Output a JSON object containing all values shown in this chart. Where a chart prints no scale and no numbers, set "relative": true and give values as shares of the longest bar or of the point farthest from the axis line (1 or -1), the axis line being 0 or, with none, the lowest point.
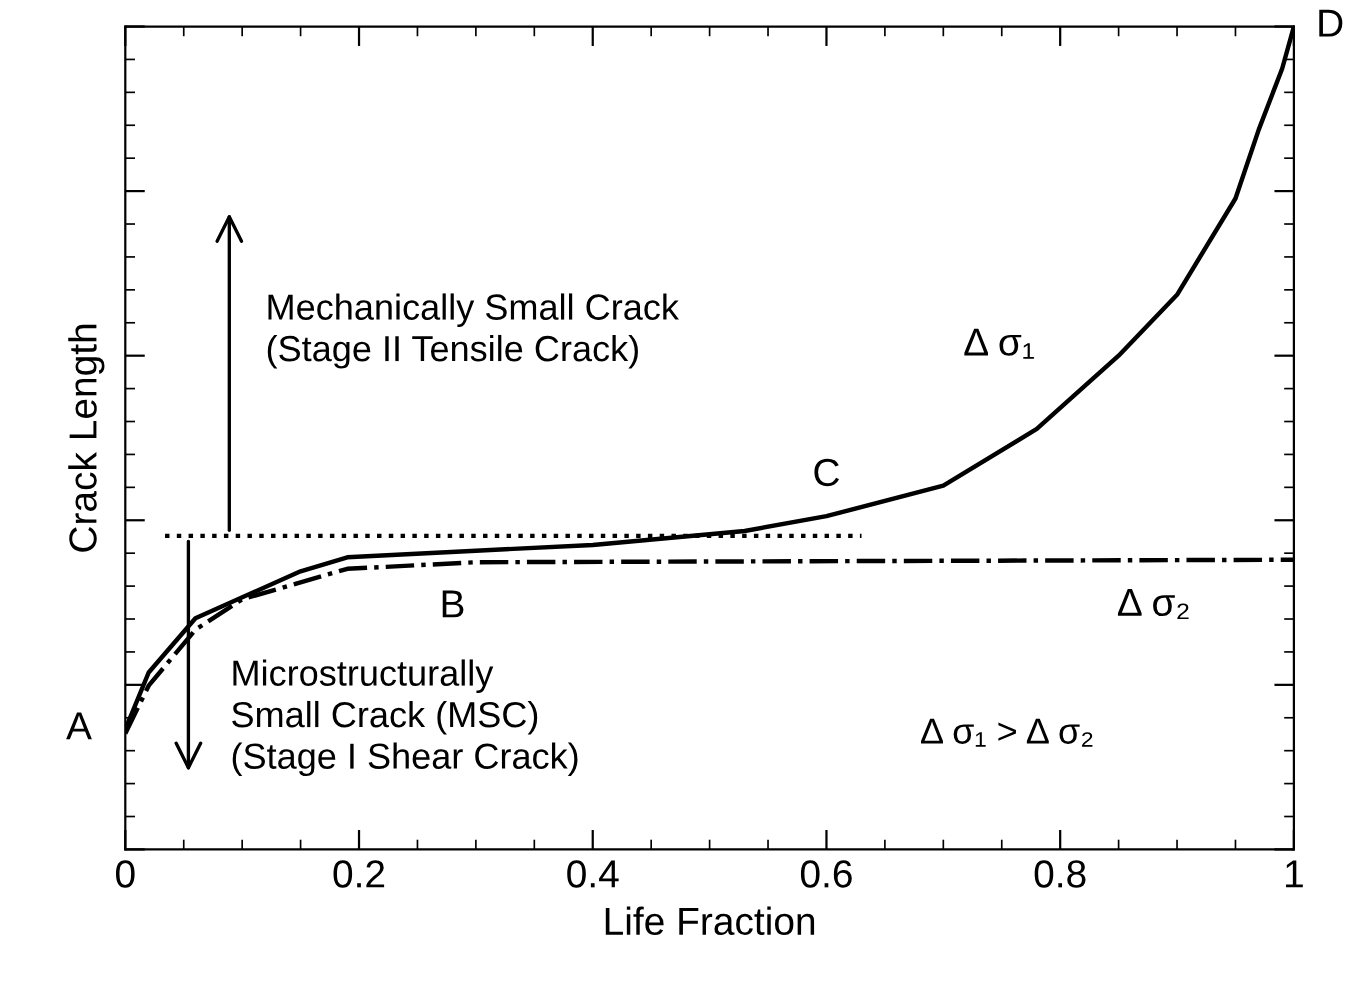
{
  "chart_data": {
    "type": "line",
    "xlabel": "Life Fraction",
    "ylabel": "Crack Length",
    "relative": true,
    "xlim": [
      0,
      1
    ],
    "xticks": [
      0,
      0.2,
      0.4,
      0.6,
      0.8,
      1
    ],
    "grid": false,
    "legend": false,
    "marker": "none",
    "series": [
      {
        "color": "#000000",
        "line_style": "solid",
        "x": [
          0,
          0.02,
          0.06,
          0.15,
          0.19,
          0.3,
          0.4,
          0.53,
          0.6,
          0.7,
          0.78,
          0.85,
          0.9,
          0.95,
          0.97,
          0.99,
          1
        ],
        "values": [
          0.146,
          0.215,
          0.281,
          0.338,
          0.355,
          0.363,
          0.37,
          0.387,
          0.405,
          0.442,
          0.511,
          0.6,
          0.674,
          0.791,
          0.875,
          0.949,
          1
        ]
      },
      {
        "color": "#000000",
        "line_style": "dashdot",
        "x": [
          0,
          0.02,
          0.06,
          0.1,
          0.19,
          0.3,
          1
        ],
        "values": [
          0.141,
          0.199,
          0.267,
          0.304,
          0.341,
          0.349,
          0.352
        ]
      },
      {
        "color": "#000000",
        "line_style": "dotted",
        "x": [
          0.034,
          0.63
        ],
        "values": [
          0.381,
          0.381
        ]
      }
    ],
    "annotations": [
      {
        "text": "A",
        "x": 0,
        "y": 0.146
      },
      {
        "text": "B",
        "x": 0.28,
        "y": 0.35
      },
      {
        "text": "C",
        "x": 0.6,
        "y": 0.405
      },
      {
        "text": "D",
        "x": 1,
        "y": 1
      },
      {
        "text": "Δ σ₁",
        "x": 0.8,
        "y": 0.55
      },
      {
        "text": "Δ σ₂",
        "x": 0.88,
        "y": 0.352
      },
      "Mechanically Small Crack\n(Stage II Tensile Crack)",
      "Microstructurally\nSmall Crack (MSC)\n(Stage I Shear Crack)",
      "Δ σ₁ > Δ σ₂"
    ]
  }
}
